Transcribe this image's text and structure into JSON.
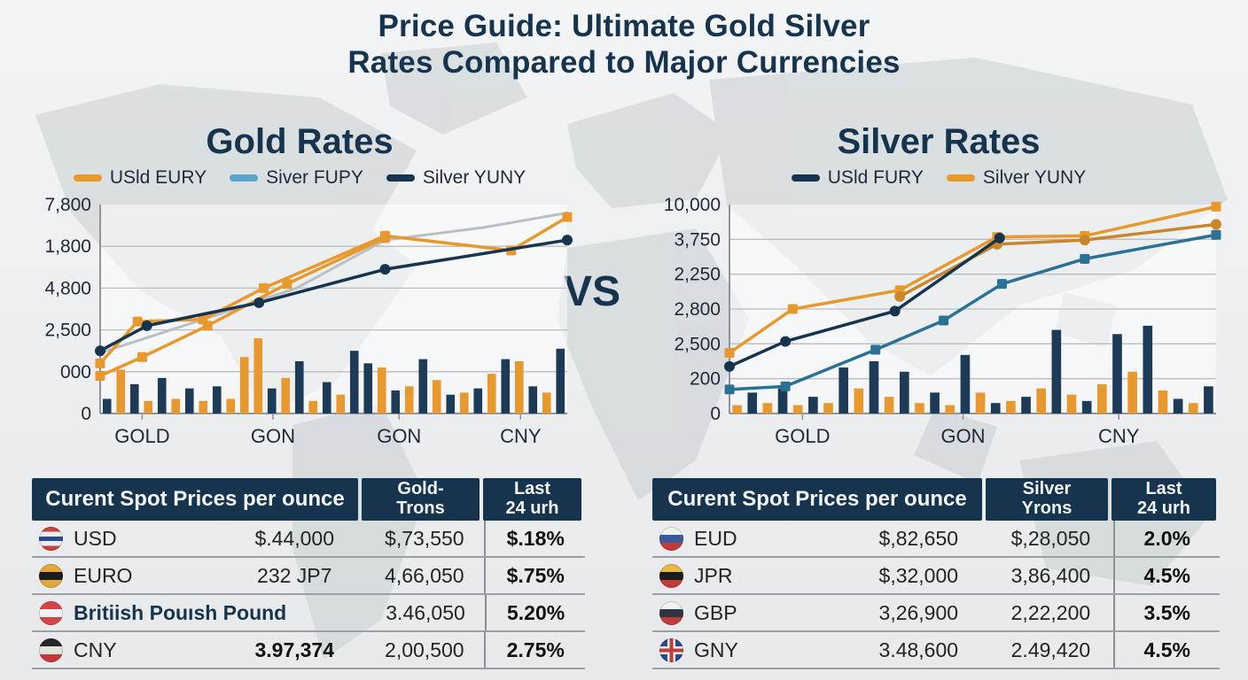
{
  "header": {
    "title_line1": "Price Guide: Ultimate Gold Silver",
    "title_line2": "Rates Compared to Major Currencies"
  },
  "vs_label": "VS",
  "colors": {
    "navy": "#16344d",
    "orange": "#e8992e",
    "orange_dark": "#c8872c",
    "light_blue": "#5ba3c9",
    "teal": "#2a7295",
    "gray_line": "#b9bfc6"
  },
  "chart_data": [
    {
      "id": "gold",
      "type": "line+bar",
      "title": "Gold Rates",
      "legend": [
        {
          "label": "USld EURY",
          "color": "#e8992e"
        },
        {
          "label": "Siver FUPY",
          "color": "#5ba3c9"
        },
        {
          "label": "Silver YUNY",
          "color": "#16344d"
        }
      ],
      "y_ticks": [
        "7,800",
        "1,800",
        "4,800",
        "2,500",
        "000",
        "0"
      ],
      "x_ticks": [
        {
          "label": "GOLD",
          "pos": 0.09
        },
        {
          "label": "GON",
          "pos": 0.37
        },
        {
          "label": "GON",
          "pos": 0.64
        },
        {
          "label": "CNY",
          "pos": 0.9
        }
      ],
      "grid": true,
      "legend_position": "top",
      "series": [
        {
          "name": "silver-gray",
          "color": "#b9bfc6",
          "marker": "none",
          "width": 3,
          "points": [
            [
              0.0,
              0.71
            ],
            [
              0.22,
              0.55
            ],
            [
              0.42,
              0.4
            ],
            [
              0.61,
              0.17
            ],
            [
              0.82,
              0.11
            ],
            [
              1.0,
              0.04
            ]
          ]
        },
        {
          "name": "usld-eury-upper",
          "color": "#e8992e",
          "marker": "square",
          "points": [
            [
              0.0,
              0.76
            ],
            [
              0.08,
              0.56
            ],
            [
              0.22,
              0.55
            ],
            [
              0.35,
              0.4
            ],
            [
              0.61,
              0.15
            ],
            [
              0.88,
              0.22
            ],
            [
              1.0,
              0.06
            ]
          ]
        },
        {
          "name": "usld-eury-lower",
          "color": "#e8992e",
          "marker": "square",
          "points": [
            [
              0.0,
              0.82
            ],
            [
              0.09,
              0.73
            ],
            [
              0.23,
              0.58
            ],
            [
              0.4,
              0.38
            ],
            [
              0.61,
              0.16
            ]
          ]
        },
        {
          "name": "silver-yuny",
          "color": "#16344d",
          "marker": "circle",
          "points": [
            [
              0.0,
              0.7
            ],
            [
              0.1,
              0.58
            ],
            [
              0.34,
              0.47
            ],
            [
              0.61,
              0.31
            ],
            [
              1.0,
              0.17
            ]
          ]
        }
      ],
      "bar_colors": {
        "n": "#1d3b57",
        "o": "#e8992e"
      },
      "bars": [
        [
          "n",
          0.07
        ],
        [
          "o",
          0.21
        ],
        [
          "n",
          0.14
        ],
        [
          "o",
          0.06
        ],
        [
          "n",
          0.17
        ],
        [
          "o",
          0.07
        ],
        [
          "n",
          0.12
        ],
        [
          "o",
          0.06
        ],
        [
          "n",
          0.13
        ],
        [
          "o",
          0.07
        ],
        [
          "o",
          0.27
        ],
        [
          "o",
          0.36
        ],
        [
          "n",
          0.12
        ],
        [
          "o",
          0.17
        ],
        [
          "n",
          0.25
        ],
        [
          "o",
          0.06
        ],
        [
          "n",
          0.15
        ],
        [
          "o",
          0.09
        ],
        [
          "n",
          0.3
        ],
        [
          "n",
          0.24
        ],
        [
          "o",
          0.22
        ],
        [
          "n",
          0.11
        ],
        [
          "o",
          0.13
        ],
        [
          "n",
          0.26
        ],
        [
          "o",
          0.16
        ],
        [
          "n",
          0.09
        ],
        [
          "o",
          0.1
        ],
        [
          "n",
          0.12
        ],
        [
          "o",
          0.19
        ],
        [
          "n",
          0.26
        ],
        [
          "o",
          0.25
        ],
        [
          "n",
          0.13
        ],
        [
          "o",
          0.1
        ],
        [
          "n",
          0.31
        ]
      ]
    },
    {
      "id": "silver",
      "type": "line+bar",
      "title": "Silver Rates",
      "legend": [
        {
          "label": "USld FURY",
          "color": "#16344d"
        },
        {
          "label": "Silver YUNY",
          "color": "#e8992e"
        }
      ],
      "y_ticks": [
        "10,000",
        "3,750",
        "2,250",
        "2,800",
        "2,500",
        "200",
        "0"
      ],
      "x_ticks": [
        {
          "label": "GOLD",
          "pos": 0.15
        },
        {
          "label": "GON",
          "pos": 0.48
        },
        {
          "label": "CNY",
          "pos": 0.8
        }
      ],
      "grid": true,
      "legend_position": "top",
      "series": [
        {
          "name": "silver-yuny-bright",
          "color": "#e8992e",
          "marker": "square",
          "points": [
            [
              0.0,
              0.71
            ],
            [
              0.13,
              0.5
            ],
            [
              0.35,
              0.41
            ],
            [
              0.55,
              0.155
            ],
            [
              0.73,
              0.15
            ],
            [
              1.0,
              0.01
            ]
          ]
        },
        {
          "name": "silver-yuny-dark",
          "color": "#c8872c",
          "marker": "circle",
          "points": [
            [
              0.35,
              0.44
            ],
            [
              0.55,
              0.19
            ],
            [
              0.73,
              0.17
            ],
            [
              1.0,
              0.095
            ]
          ]
        },
        {
          "name": "usld-fury",
          "color": "#16344d",
          "marker": "circle",
          "points": [
            [
              0.0,
              0.775
            ],
            [
              0.115,
              0.655
            ],
            [
              0.34,
              0.51
            ],
            [
              0.555,
              0.16
            ]
          ]
        },
        {
          "name": "teal-line",
          "color": "#2a7295",
          "marker": "square",
          "points": [
            [
              0.0,
              0.885
            ],
            [
              0.115,
              0.87
            ],
            [
              0.3,
              0.695
            ],
            [
              0.44,
              0.555
            ],
            [
              0.56,
              0.38
            ],
            [
              0.73,
              0.26
            ],
            [
              1.0,
              0.145
            ]
          ]
        }
      ],
      "bar_colors": {
        "n": "#1d3b57",
        "o": "#e8992e"
      },
      "bars": [
        [
          "o",
          0.04
        ],
        [
          "n",
          0.1
        ],
        [
          "o",
          0.05
        ],
        [
          "n",
          0.12
        ],
        [
          "o",
          0.04
        ],
        [
          "n",
          0.08
        ],
        [
          "o",
          0.05
        ],
        [
          "n",
          0.22
        ],
        [
          "o",
          0.12
        ],
        [
          "n",
          0.25
        ],
        [
          "o",
          0.08
        ],
        [
          "n",
          0.2
        ],
        [
          "o",
          0.05
        ],
        [
          "n",
          0.1
        ],
        [
          "o",
          0.04
        ],
        [
          "n",
          0.28
        ],
        [
          "o",
          0.1
        ],
        [
          "n",
          0.05
        ],
        [
          "o",
          0.06
        ],
        [
          "n",
          0.08
        ],
        [
          "o",
          0.12
        ],
        [
          "n",
          0.4
        ],
        [
          "o",
          0.09
        ],
        [
          "n",
          0.06
        ],
        [
          "o",
          0.14
        ],
        [
          "n",
          0.38
        ],
        [
          "o",
          0.2
        ],
        [
          "n",
          0.42
        ],
        [
          "o",
          0.11
        ],
        [
          "n",
          0.07
        ],
        [
          "o",
          0.05
        ],
        [
          "n",
          0.13
        ]
      ]
    }
  ],
  "tables": {
    "gold": {
      "header": {
        "title": "Curent Spot Prices per ounce",
        "col2_line1": "Gold-",
        "col2_line2": "Trons",
        "col3_line1": "Last",
        "col3_line2": "24 urh"
      },
      "rows": [
        {
          "flag": [
            "#c94040",
            "#ececec",
            "#2b4a8b",
            "#ececec",
            "#c94040"
          ],
          "name": "USD",
          "value1": "$.44,000",
          "value2": "$,73,550",
          "pct": "$.18%"
        },
        {
          "flag": [
            "#e3a83c",
            "#1c1c1c",
            "#e3a83c"
          ],
          "name": "EURO",
          "value1": "232 JP7",
          "value2": "4,66,050",
          "pct": "$.75%"
        },
        {
          "flag": [
            "#d64545",
            "#f2f2f2",
            "#d64545"
          ],
          "name": "Britiish Pouısh Pound",
          "value1": "",
          "value2": "3.46,050",
          "pct": "5.20%"
        },
        {
          "flag": [
            "#26262a",
            "#dfe4dc",
            "#c23b3b"
          ],
          "name": "CNY",
          "value1": "3.97,374",
          "value2": "2,00,500",
          "pct": "2.75%"
        }
      ]
    },
    "silver": {
      "header": {
        "title": "Curent Spot Prices per ounce",
        "col2_line1": "Silver",
        "col2_line2": "Yrons",
        "col3_line1": "Last",
        "col3_line2": "24 urh"
      },
      "rows": [
        {
          "flag": [
            "#f2f2f2",
            "#3b5a9b",
            "#c23b3b"
          ],
          "name": "EUD",
          "value1": "$,82,650",
          "value2": "$,28,050",
          "pct": "2.0%"
        },
        {
          "flag": [
            "#e8b84b",
            "#1c1c1c",
            "#c23b3b"
          ],
          "name": "JPR",
          "value1": "$,32,000",
          "value2": "3,86,400",
          "pct": "4.5%"
        },
        {
          "flag": [
            "#f2f2f2",
            "#2e3440",
            "#c23b3b"
          ],
          "name": "GBP",
          "value1": "3,26,900",
          "value2": "2,22,200",
          "pct": "3.5%"
        },
        {
          "flag": "uk",
          "name": "GNY",
          "value1": "3.48,600",
          "value2": "2.49,420",
          "pct": "4.5%"
        }
      ]
    }
  }
}
